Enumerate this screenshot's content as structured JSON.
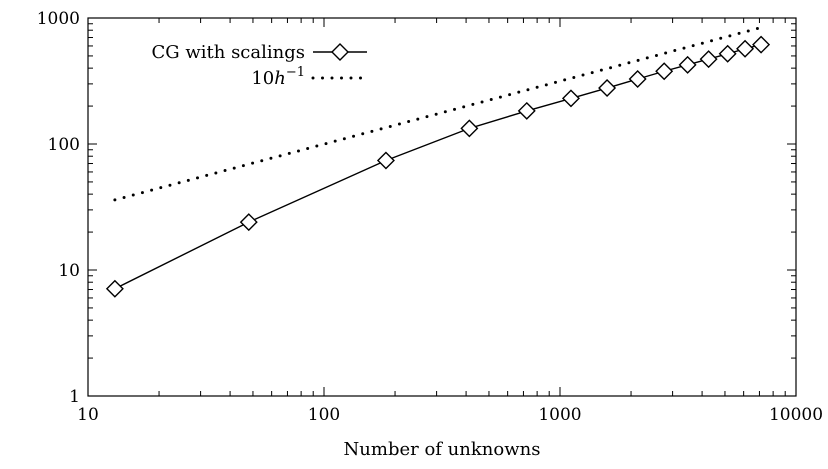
{
  "chart_data": {
    "type": "line",
    "title": "",
    "xlabel": "Number of unknowns",
    "ylabel": "",
    "x_scale": "log",
    "y_scale": "log",
    "xlim": [
      10,
      10000
    ],
    "ylim": [
      1,
      1000
    ],
    "grid": false,
    "legend_position": "top-left",
    "x_ticks": [
      "10",
      "100",
      "1000",
      "10000"
    ],
    "y_ticks": [
      "1",
      "10",
      "100",
      "1000"
    ],
    "series": [
      {
        "name": "CG with scalings",
        "style": "solid-line-diamond-markers",
        "color": "#000000",
        "x": [
          13,
          48,
          183,
          413,
          723,
          1113,
          1583,
          2133,
          2763,
          3473,
          4263,
          5133,
          6083,
          7113
        ],
        "y": [
          7.1,
          24,
          74,
          133,
          183,
          230,
          278,
          328,
          378,
          425,
          472,
          520,
          570,
          615
        ]
      },
      {
        "name": "10h⁻¹",
        "legend_main": "10",
        "legend_italic": "h",
        "legend_sup": "−1",
        "style": "dotted-line",
        "color": "#000000",
        "x": [
          13,
          7113
        ],
        "y": [
          36,
          840
        ]
      }
    ]
  }
}
